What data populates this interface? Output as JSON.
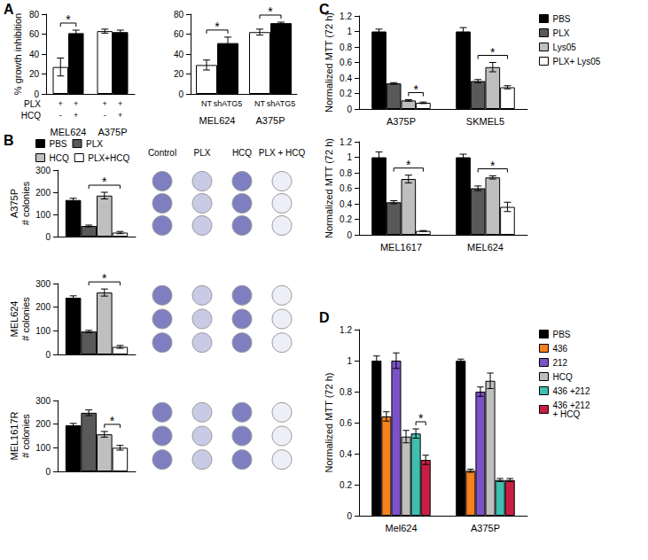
{
  "chart_data": [
    {
      "type": "bar",
      "title": "A",
      "ylabel": "% growth inhibition",
      "categories": [
        "MEL624",
        "A375P"
      ],
      "series": [
        {
          "color": "#ffffff",
          "values": [
            27,
            63
          ],
          "errors": [
            9,
            2
          ]
        },
        {
          "color": "#000000",
          "values": [
            61,
            62
          ],
          "errors": [
            3,
            2
          ]
        }
      ],
      "tick_rows": [
        {
          "label": "PLX",
          "values": [
            [
              "+",
              "+"
            ],
            [
              "+",
              "+"
            ]
          ]
        },
        {
          "label": "HCQ",
          "values": [
            [
              "-",
              "+"
            ],
            [
              "-",
              "+"
            ]
          ]
        }
      ],
      "annotations": [
        {
          "text": "*",
          "category": 0,
          "from": 0,
          "to": 1
        }
      ],
      "ylim": [
        0,
        80
      ],
      "yticks": [
        0,
        20,
        40,
        60,
        80
      ],
      "grid": false
    },
    {
      "type": "bar",
      "categories": [
        "MEL624",
        "A375P"
      ],
      "series": [
        {
          "color": "#ffffff",
          "values": [
            29,
            62
          ],
          "errors": [
            5,
            3
          ]
        },
        {
          "color": "#000000",
          "values": [
            51,
            71
          ],
          "errors": [
            6,
            1
          ]
        }
      ],
      "tick_rows": [
        {
          "values": [
            [
              "NT",
              "shATG5"
            ],
            [
              "NT",
              "shATG5"
            ]
          ]
        }
      ],
      "annotations": [
        {
          "text": "*",
          "category": 0,
          "from": 0,
          "to": 1
        },
        {
          "text": "*",
          "category": 1,
          "from": 0,
          "to": 1
        }
      ],
      "ylim": [
        0,
        80
      ],
      "yticks": [
        0,
        20,
        40,
        60,
        80
      ],
      "grid": false
    },
    {
      "type": "bar",
      "title": "B",
      "ylabel": "A375P\n# colonies",
      "categories": [
        null
      ],
      "series": [
        {
          "name": "PBS",
          "color": "#000000",
          "values": [
            165
          ],
          "errors": [
            8
          ]
        },
        {
          "name": "PLX",
          "color": "#595959",
          "values": [
            48
          ],
          "errors": [
            4
          ]
        },
        {
          "name": "HCQ",
          "color": "#bfbfbf",
          "values": [
            185
          ],
          "errors": [
            15
          ]
        },
        {
          "name": "PLX+HCQ",
          "color": "#ffffff",
          "values": [
            18
          ],
          "errors": [
            5
          ]
        }
      ],
      "annotations": [
        {
          "text": "*",
          "category": 0,
          "from": 1,
          "to": 3
        }
      ],
      "legend": "top",
      "ylim": [
        0,
        300
      ],
      "yticks": [
        0,
        100,
        200,
        300
      ],
      "grid": false
    },
    {
      "type": "bar",
      "ylabel": "MEL624\n# colonies",
      "categories": [
        null
      ],
      "series": [
        {
          "name": "PBS",
          "color": "#000000",
          "values": [
            240
          ],
          "errors": [
            8
          ]
        },
        {
          "name": "PLX",
          "color": "#595959",
          "values": [
            97
          ],
          "errors": [
            5
          ]
        },
        {
          "name": "HCQ",
          "color": "#bfbfbf",
          "values": [
            262
          ],
          "errors": [
            15
          ]
        },
        {
          "name": "PLX+HCQ",
          "color": "#ffffff",
          "values": [
            32
          ],
          "errors": [
            6
          ]
        }
      ],
      "annotations": [
        {
          "text": "*",
          "category": 0,
          "from": 1,
          "to": 3
        }
      ],
      "ylim": [
        0,
        300
      ],
      "yticks": [
        0,
        100,
        200,
        300
      ],
      "grid": false
    },
    {
      "type": "bar",
      "ylabel": "MEL1617R\n# colonies",
      "categories": [
        null
      ],
      "series": [
        {
          "name": "PBS",
          "color": "#000000",
          "values": [
            195
          ],
          "errors": [
            8
          ]
        },
        {
          "name": "PLX",
          "color": "#595959",
          "values": [
            248
          ],
          "errors": [
            12
          ]
        },
        {
          "name": "HCQ",
          "color": "#bfbfbf",
          "values": [
            157
          ],
          "errors": [
            12
          ]
        },
        {
          "name": "PLX+HCQ",
          "color": "#ffffff",
          "values": [
            100
          ],
          "errors": [
            10
          ]
        }
      ],
      "annotations": [
        {
          "text": "*",
          "category": 0,
          "from": 2,
          "to": 3
        }
      ],
      "ylim": [
        0,
        300
      ],
      "yticks": [
        0,
        100,
        200,
        300
      ],
      "grid": false
    },
    {
      "type": "bar",
      "title": "C",
      "ylabel": "Normalized MTT (72 h)",
      "categories": [
        "A375P",
        "SKMEL5"
      ],
      "series": [
        {
          "name": "PBS",
          "color": "#000000",
          "values": [
            1.0,
            1.0
          ],
          "errors": [
            0.03,
            0.05
          ]
        },
        {
          "name": "PLX",
          "color": "#595959",
          "values": [
            0.33,
            0.36
          ],
          "errors": [
            0.01,
            0.02
          ]
        },
        {
          "name": "Lys05",
          "color": "#bfbfbf",
          "values": [
            0.11,
            0.54
          ],
          "errors": [
            0.01,
            0.06
          ]
        },
        {
          "name": "PLX+ Lys05",
          "color": "#ffffff",
          "values": [
            0.08,
            0.28
          ],
          "errors": [
            0.01,
            0.02
          ]
        }
      ],
      "annotations": [
        {
          "text": "*",
          "category": 0,
          "from": 2,
          "to": 3
        },
        {
          "text": "*",
          "category": 1,
          "from": 1,
          "to": 3
        }
      ],
      "legend": "right",
      "ylim": [
        0,
        1.2
      ],
      "yticks": [
        0,
        0.2,
        0.4,
        0.6,
        0.8,
        1,
        1.2
      ],
      "grid": false
    },
    {
      "type": "bar",
      "ylabel": "Normalized MTT (72 h)",
      "categories": [
        "MEL1617",
        "MEL624"
      ],
      "series": [
        {
          "name": "PBS",
          "color": "#000000",
          "values": [
            1.0,
            1.0
          ],
          "errors": [
            0.07,
            0.04
          ]
        },
        {
          "name": "PLX",
          "color": "#595959",
          "values": [
            0.42,
            0.6
          ],
          "errors": [
            0.02,
            0.03
          ]
        },
        {
          "name": "Lys05",
          "color": "#bfbfbf",
          "values": [
            0.72,
            0.74
          ],
          "errors": [
            0.05,
            0.02
          ]
        },
        {
          "name": "PLX+ Lys05",
          "color": "#ffffff",
          "values": [
            0.05,
            0.36
          ],
          "errors": [
            0.005,
            0.06
          ]
        }
      ],
      "annotations": [
        {
          "text": "*",
          "category": 0,
          "from": 1,
          "to": 3
        },
        {
          "text": "*",
          "category": 1,
          "from": 1,
          "to": 3
        }
      ],
      "ylim": [
        0,
        1.2
      ],
      "yticks": [
        0,
        0.2,
        0.4,
        0.6,
        0.8,
        1,
        1.2
      ],
      "grid": false
    },
    {
      "type": "bar",
      "title": "D",
      "ylabel": "Normalized MTT (72 h)",
      "categories": [
        "Mel624",
        "A375P"
      ],
      "series": [
        {
          "name": "PBS",
          "color": "#000000",
          "values": [
            1.0,
            1.0
          ],
          "errors": [
            0.03,
            0.01
          ]
        },
        {
          "name": "436",
          "color": "#f5821f",
          "values": [
            0.64,
            0.29
          ],
          "errors": [
            0.03,
            0.01
          ]
        },
        {
          "name": "212",
          "color": "#7b52c7",
          "values": [
            1.0,
            0.8
          ],
          "errors": [
            0.05,
            0.03
          ]
        },
        {
          "name": "HCQ",
          "color": "#bfbfbf",
          "values": [
            0.51,
            0.87
          ],
          "errors": [
            0.04,
            0.05
          ]
        },
        {
          "name": "436 +212",
          "color": "#3fbfad",
          "values": [
            0.53,
            0.23
          ],
          "errors": [
            0.03,
            0.01
          ]
        },
        {
          "name": "436 +212\n+ HCQ",
          "color": "#c81e45",
          "values": [
            0.36,
            0.23
          ],
          "errors": [
            0.03,
            0.01
          ]
        }
      ],
      "annotations": [
        {
          "text": "*",
          "category": 0,
          "from": 4,
          "to": 5
        }
      ],
      "legend": "right",
      "ylim": [
        0,
        1.2
      ],
      "yticks": [
        0,
        0.2,
        0.4,
        0.6,
        0.8,
        1,
        1.2
      ],
      "grid": false
    }
  ],
  "plates": {
    "columns": [
      "Control",
      "PLX",
      "HCQ",
      "PLX + HCQ"
    ]
  }
}
